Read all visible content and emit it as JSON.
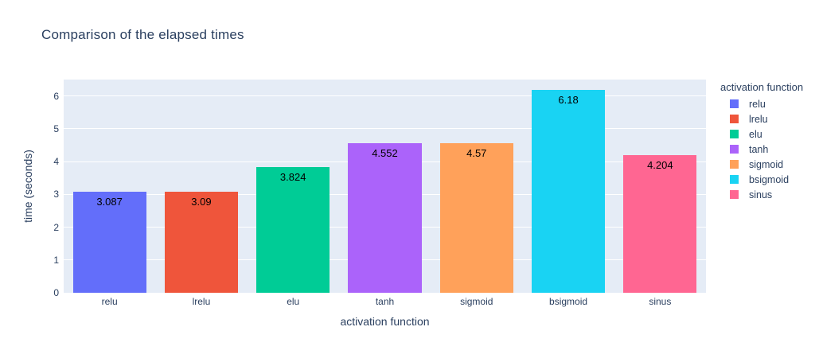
{
  "chart_data": {
    "type": "bar",
    "title": "Comparison of the elapsed times",
    "xlabel": "activation function",
    "ylabel": "time (seconds)",
    "categories": [
      "relu",
      "lrelu",
      "elu",
      "tanh",
      "sigmoid",
      "bsigmoid",
      "sinus"
    ],
    "values": [
      3.087,
      3.09,
      3.824,
      4.552,
      4.57,
      6.18,
      4.204
    ],
    "bar_labels": [
      "3.087",
      "3.09",
      "3.824",
      "4.552",
      "4.57",
      "6.18",
      "4.204"
    ],
    "colors": [
      "#636EFA",
      "#EF553B",
      "#00CC96",
      "#AB63FA",
      "#FFA15A",
      "#19D3F3",
      "#FF6692"
    ],
    "ylim": [
      0,
      6.5
    ],
    "yticks": [
      0,
      1,
      2,
      3,
      4,
      5,
      6
    ],
    "grid": true,
    "plot_bgcolor": "#E5ECF6",
    "gridline_color": "#FFFFFF",
    "text_color": "#2a3f5f",
    "bar_label_color": "#000000",
    "legend": {
      "title": "activation function",
      "position": "right",
      "entries": [
        {
          "label": "relu",
          "color": "#636EFA"
        },
        {
          "label": "lrelu",
          "color": "#EF553B"
        },
        {
          "label": "elu",
          "color": "#00CC96"
        },
        {
          "label": "tanh",
          "color": "#AB63FA"
        },
        {
          "label": "sigmoid",
          "color": "#FFA15A"
        },
        {
          "label": "bsigmoid",
          "color": "#19D3F3"
        },
        {
          "label": "sinus",
          "color": "#FF6692"
        }
      ]
    }
  }
}
